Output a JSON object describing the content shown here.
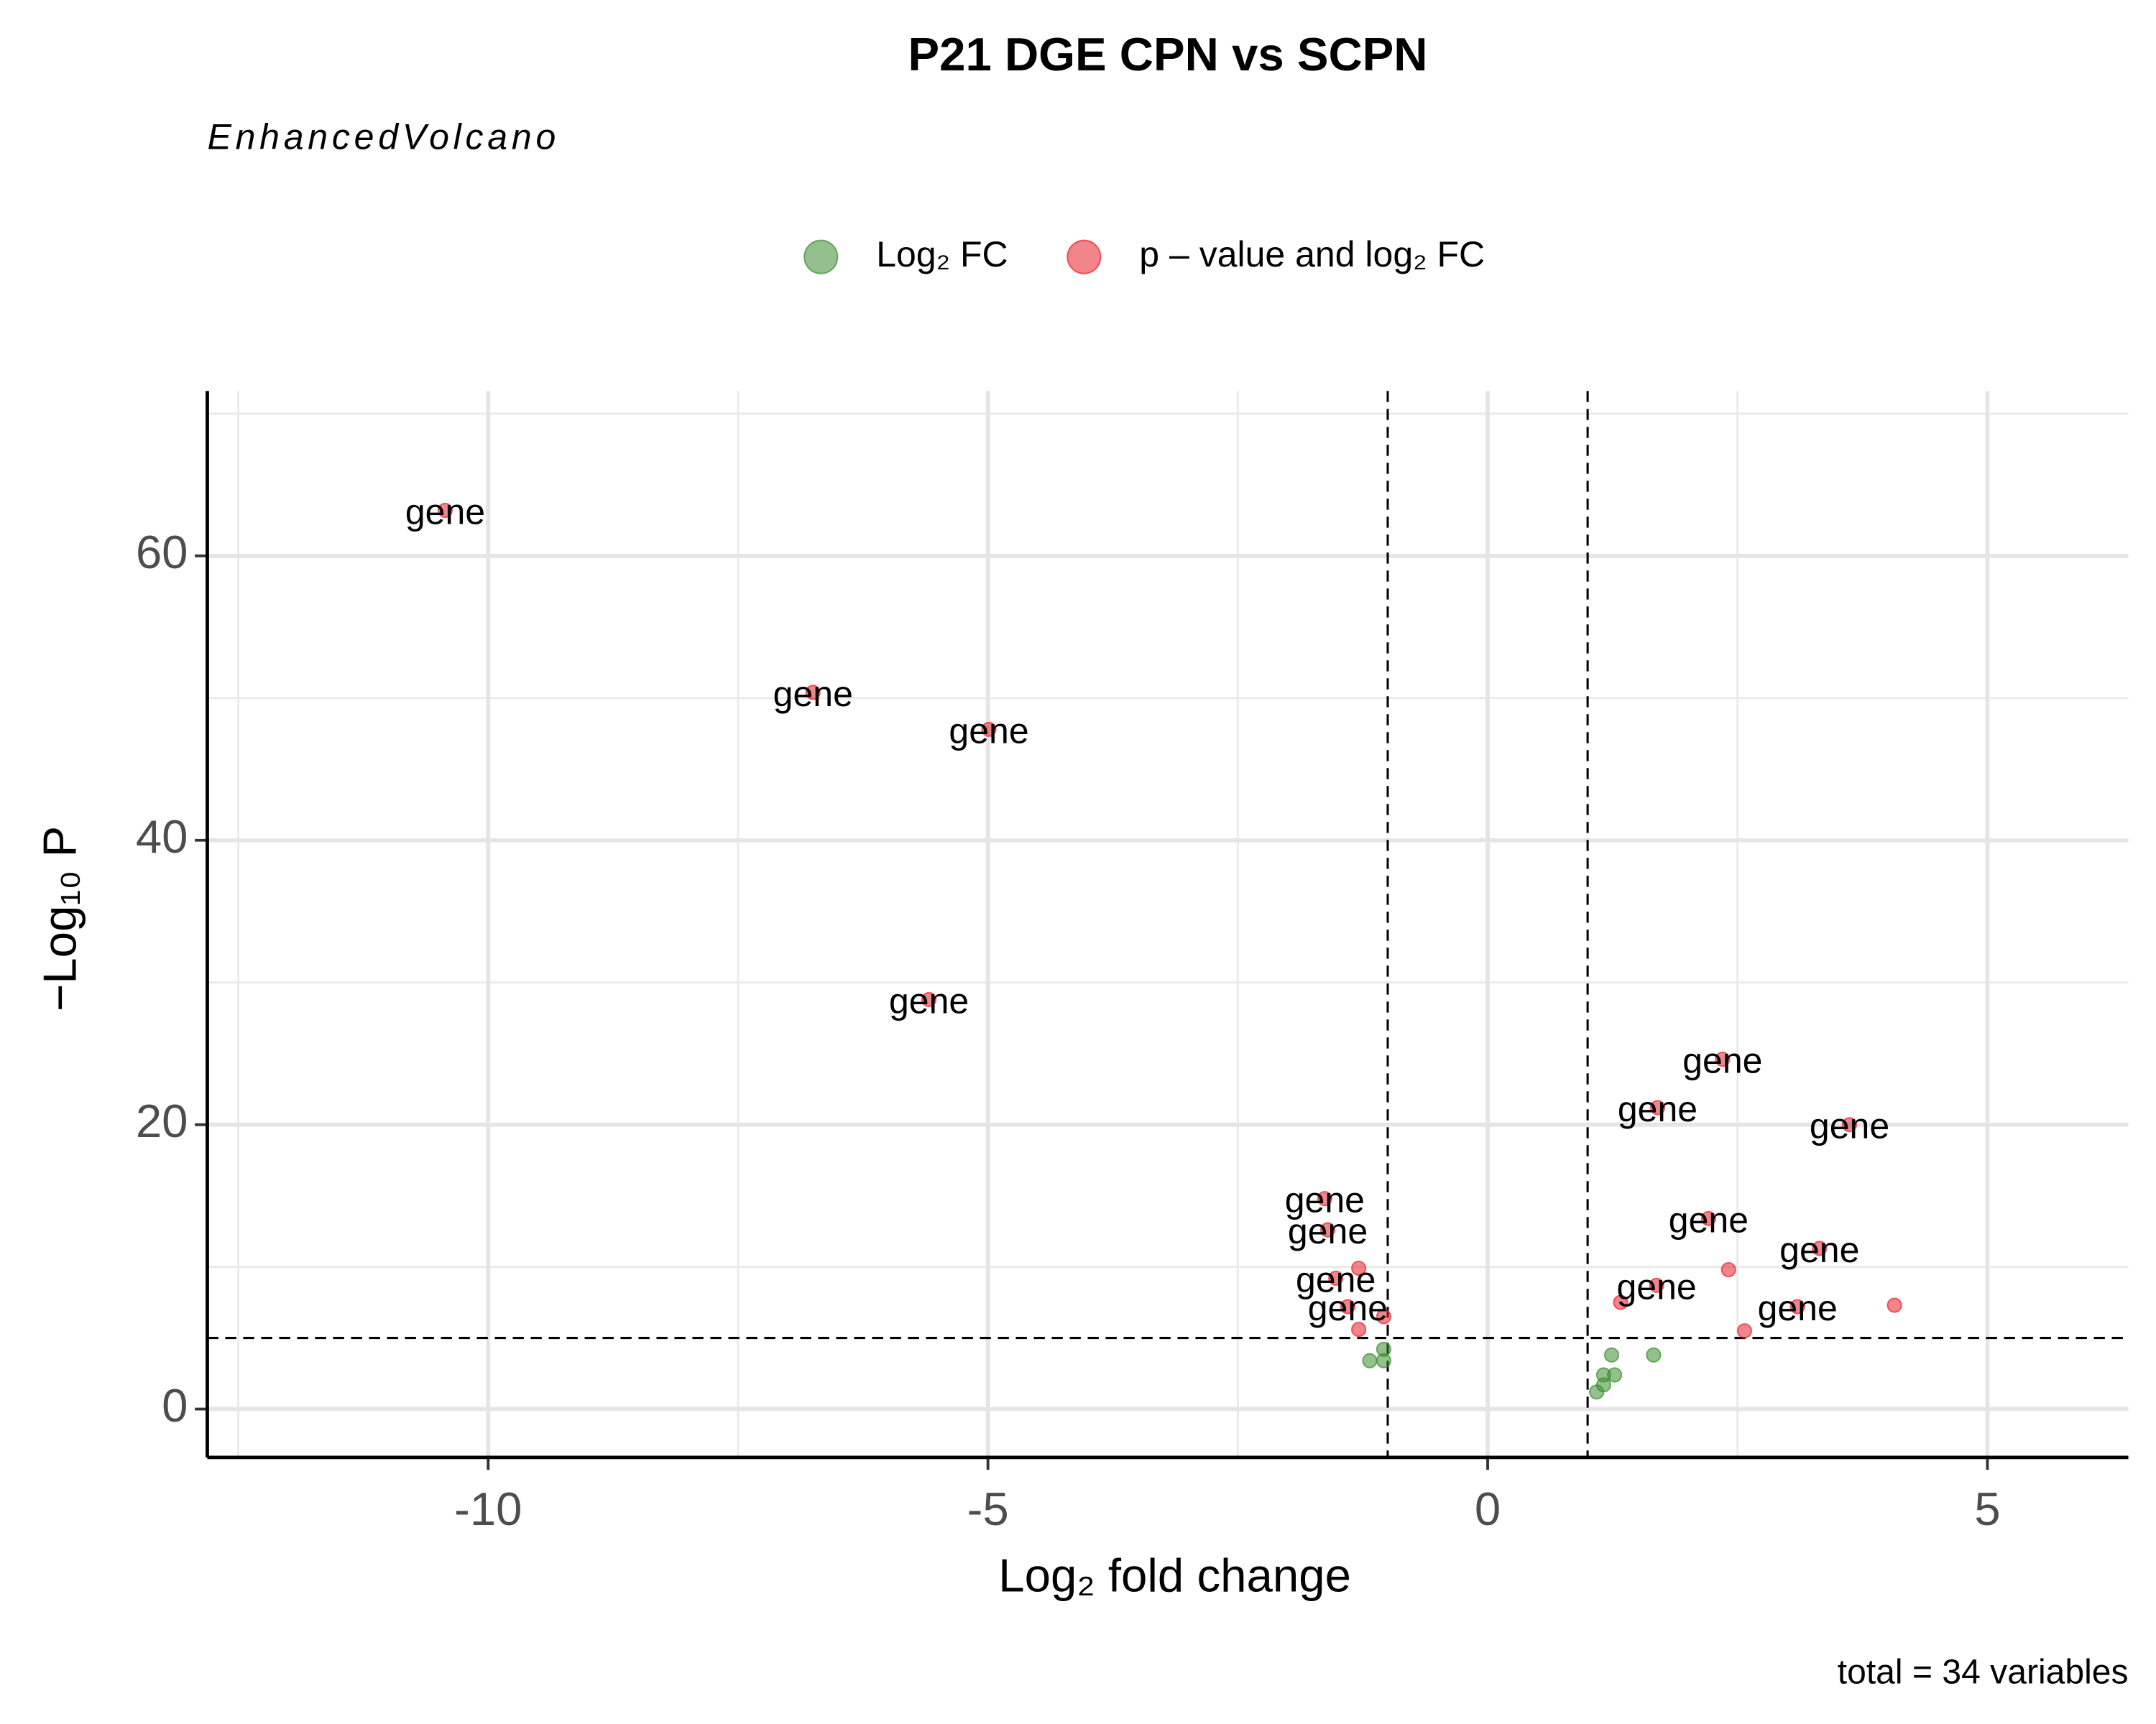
{
  "chart_data": {
    "type": "scatter",
    "title": "P21 DGE CPN vs SCPN",
    "subtitle": "EnhancedVolcano",
    "caption": "total = 34 variables",
    "x_label": "Log₂ fold change",
    "y_label": "−Log₁₀ P",
    "xlim": [
      -12.81,
      6.41
    ],
    "ylim": [
      -3.4,
      71.6
    ],
    "xticks": [
      -10,
      -5,
      0,
      5
    ],
    "yticks": [
      0,
      20,
      40,
      60
    ],
    "minor_xticks": [
      -12.5,
      -7.5,
      -2.5,
      2.5
    ],
    "minor_yticks": [
      10,
      30,
      50,
      70
    ],
    "grid": true,
    "legend": "top",
    "cutoff_x": [
      -1,
      1
    ],
    "cutoff_y": 5,
    "series": [
      {
        "name": "Log₂ FC",
        "color": "#3a8c2f",
        "x": [
          -1.04,
          -1.04,
          -1.18,
          1.24,
          1.66,
          1.16,
          1.27,
          1.16,
          1.09
        ],
        "values": [
          4.2,
          3.4,
          3.4,
          3.8,
          3.8,
          2.4,
          2.4,
          1.7,
          1.2
        ]
      },
      {
        "name": "p – value and log₂ FC",
        "color": "#e8202a",
        "x": [
          -10.43,
          -6.75,
          -4.99,
          -5.59,
          2.35,
          1.7,
          3.62,
          -1.63,
          -1.6,
          -1.52,
          -1.29,
          2.21,
          3.32,
          2.41,
          1.69,
          1.33,
          -1.4,
          -1.04,
          -1.29,
          3.1,
          4.07,
          2.57
        ],
        "values": [
          63.2,
          50.4,
          47.8,
          28.8,
          24.6,
          21.2,
          20.0,
          14.8,
          12.6,
          9.2,
          9.9,
          13.4,
          11.3,
          9.8,
          8.7,
          7.5,
          7.2,
          6.5,
          5.6,
          7.2,
          7.3,
          5.5
        ],
        "labels": [
          "gene",
          "gene",
          "gene",
          "gene",
          "gene",
          "gene",
          "gene",
          "gene",
          "gene",
          "gene",
          null,
          "gene",
          "gene",
          null,
          "gene",
          null,
          "gene",
          null,
          null,
          "gene",
          null,
          null
        ]
      }
    ]
  }
}
